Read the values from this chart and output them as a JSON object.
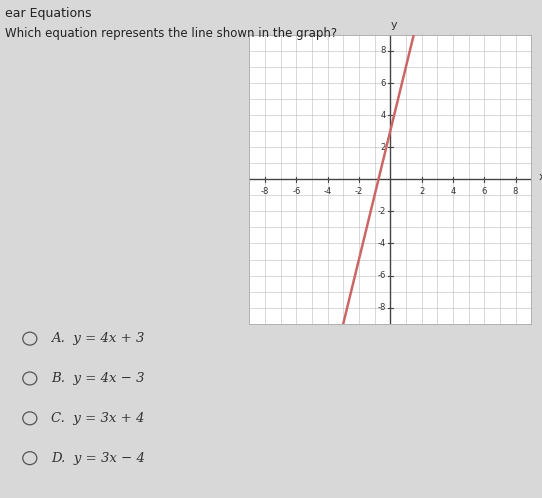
{
  "title": "ear Equations",
  "question": "Which equation represents the line shown in the graph?",
  "options": [
    "A.  y = 4x + 3",
    "B.  y = 4x − 3",
    "C.  y = 3x + 4",
    "D.  y = 3x − 4"
  ],
  "slope": 4,
  "intercept": 3,
  "x_range": [
    -9,
    9
  ],
  "y_range": [
    -9,
    9
  ],
  "axis_ticks": [
    -8,
    -6,
    -4,
    -2,
    2,
    4,
    6,
    8
  ],
  "line_color": "#cc6666",
  "line_x_start": -3.0,
  "line_x_end": 1.75,
  "grid_color": "#bbbbbb",
  "fig_bg_color": "#d8d8d8",
  "plot_bg_color": "#ffffff",
  "title_color": "#222222",
  "question_color": "#222222",
  "option_color": "#333333",
  "separator_color": "#999999"
}
